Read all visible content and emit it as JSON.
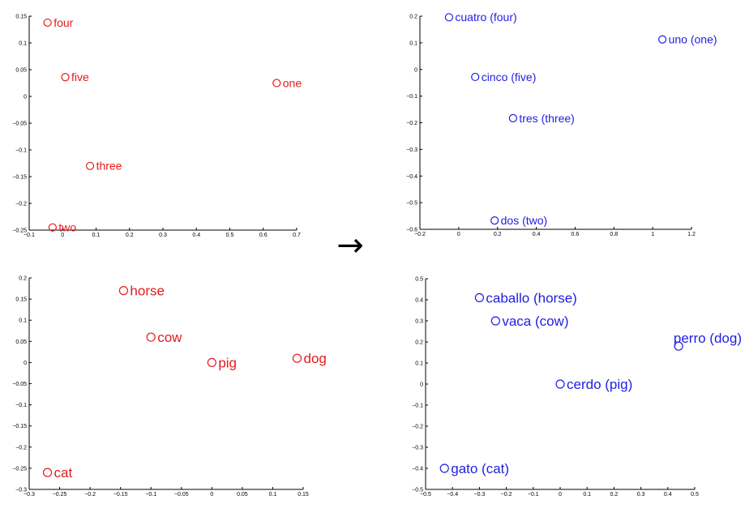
{
  "figure": {
    "arrow_symbol": "→"
  },
  "colors": {
    "english": "#e41a1c",
    "spanish": "#1f1fe0",
    "axis": "#000000"
  },
  "chart_data": [
    {
      "type": "scatter",
      "panel": "english-numbers",
      "color": "#e41a1c",
      "xlim": [
        -0.1,
        0.7
      ],
      "ylim": [
        -0.25,
        0.15
      ],
      "xticks": [
        "-0.1",
        "0",
        "0.1",
        "0.2",
        "0.3",
        "0.4",
        "0.5",
        "0.6",
        "0.7"
      ],
      "yticks": [
        "-0.25",
        "-0.2",
        "-0.15",
        "-0.1",
        "-0.05",
        "0",
        "0.05",
        "0.1",
        "0.15"
      ],
      "points": [
        {
          "label": "four",
          "x": -0.045,
          "y": 0.138
        },
        {
          "label": "five",
          "x": 0.008,
          "y": 0.036
        },
        {
          "label": "one",
          "x": 0.64,
          "y": 0.025
        },
        {
          "label": "three",
          "x": 0.082,
          "y": -0.13
        },
        {
          "label": "two",
          "x": -0.03,
          "y": -0.245
        }
      ]
    },
    {
      "type": "scatter",
      "panel": "spanish-numbers",
      "color": "#1f1fe0",
      "xlim": [
        -0.2,
        1.2
      ],
      "ylim": [
        -0.6,
        0.2
      ],
      "xticks": [
        "-0.2",
        "0",
        "0.2",
        "0.4",
        "0.6",
        "0.8",
        "1",
        "1.2"
      ],
      "yticks": [
        "-0.6",
        "-0.5",
        "-0.4",
        "-0.3",
        "-0.2",
        "-0.1",
        "0",
        "0.1",
        "0.2"
      ],
      "points": [
        {
          "label": "cuatro (four)",
          "x": -0.05,
          "y": 0.196
        },
        {
          "label": "uno (one)",
          "x": 1.05,
          "y": 0.113
        },
        {
          "label": "cinco (five)",
          "x": 0.085,
          "y": -0.028
        },
        {
          "label": "tres (three)",
          "x": 0.28,
          "y": -0.183
        },
        {
          "label": "dos (two)",
          "x": 0.185,
          "y": -0.567
        }
      ]
    },
    {
      "type": "scatter",
      "panel": "english-animals",
      "color": "#e41a1c",
      "xlim": [
        -0.3,
        0.15
      ],
      "ylim": [
        -0.3,
        0.2
      ],
      "xticks": [
        "-0.3",
        "-0.25",
        "-0.2",
        "-0.15",
        "-0.1",
        "-0.05",
        "0",
        "0.05",
        "0.1",
        "0.15"
      ],
      "yticks": [
        "-0.3",
        "-0.25",
        "-0.2",
        "-0.15",
        "-0.1",
        "-0.05",
        "0",
        "0.05",
        "0.1",
        "0.15",
        "0.2"
      ],
      "points": [
        {
          "label": "horse",
          "x": -0.145,
          "y": 0.17
        },
        {
          "label": "cow",
          "x": -0.1,
          "y": 0.06
        },
        {
          "label": "pig",
          "x": 0.0,
          "y": 0.0
        },
        {
          "label": "dog",
          "x": 0.14,
          "y": 0.01
        },
        {
          "label": "cat",
          "x": -0.27,
          "y": -0.26
        }
      ]
    },
    {
      "type": "scatter",
      "panel": "spanish-animals",
      "color": "#1f1fe0",
      "xlim": [
        -0.5,
        0.5
      ],
      "ylim": [
        -0.5,
        0.5
      ],
      "xticks": [
        "-0.5",
        "-0.4",
        "-0.3",
        "-0.2",
        "-0.1",
        "0",
        "0.1",
        "0.2",
        "0.3",
        "0.4",
        "0.5"
      ],
      "yticks": [
        "-0.5",
        "-0.4",
        "-0.3",
        "-0.2",
        "-0.1",
        "0",
        "0.1",
        "0.2",
        "0.3",
        "0.4",
        "0.5"
      ],
      "points": [
        {
          "label": "caballo (horse)",
          "x": -0.3,
          "y": 0.41
        },
        {
          "label": "vaca (cow)",
          "x": -0.24,
          "y": 0.3
        },
        {
          "label": "perro (dog)",
          "x": 0.44,
          "y": 0.18
        },
        {
          "label": "cerdo (pig)",
          "x": 0.0,
          "y": 0.0
        },
        {
          "label": "gato (cat)",
          "x": -0.43,
          "y": -0.4
        }
      ]
    }
  ]
}
